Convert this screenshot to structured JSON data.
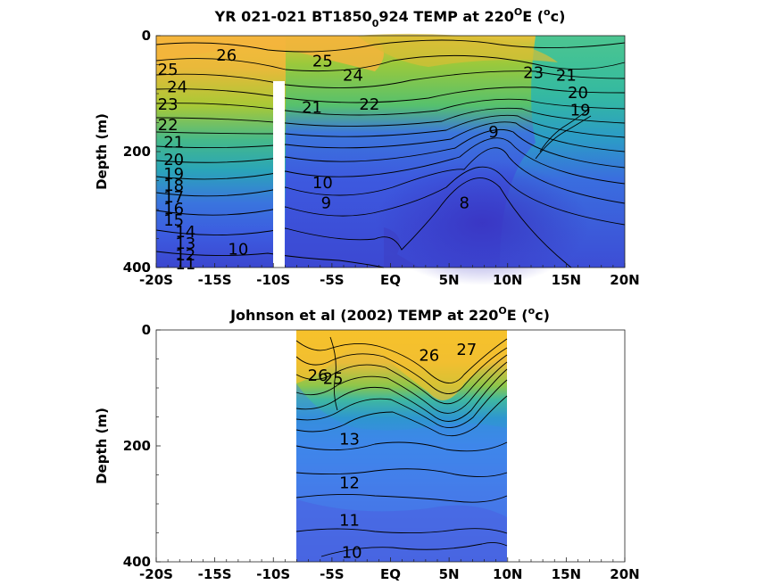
{
  "chart_data": [
    {
      "type": "contour",
      "title_parts": [
        "YR 021-021 BT1850",
        "0",
        "924 TEMP at 220",
        "O",
        "E (",
        "o",
        "c)"
      ],
      "ylabel": "Depth (m)",
      "x_ticks": [
        "-20S",
        "-15S",
        "-10S",
        "-5S",
        "EQ",
        "5N",
        "10N",
        "15N",
        "20N"
      ],
      "y_ticks": [
        "0",
        "200",
        "400"
      ],
      "xlim": [
        -20,
        20
      ],
      "ylim": [
        0,
        400
      ],
      "colors": {
        "warm": "#f4b93a",
        "mid": "#2fb5a0",
        "cool": "#3d55d8",
        "deep": "#3a3fc6"
      },
      "masked_column": {
        "lat": -9.7,
        "from_depth": 80
      },
      "contours": [
        {
          "label": "26",
          "lat": -14,
          "depth": 35
        },
        {
          "label": "25",
          "lat": -5.8,
          "depth": 45
        },
        {
          "label": "25",
          "lat": -19,
          "depth": 60
        },
        {
          "label": "24",
          "lat": -18.2,
          "depth": 90
        },
        {
          "label": "24",
          "lat": -3.2,
          "depth": 70
        },
        {
          "label": "23",
          "lat": -19,
          "depth": 120
        },
        {
          "label": "23",
          "lat": 12.2,
          "depth": 65
        },
        {
          "label": "22",
          "lat": -19,
          "depth": 155
        },
        {
          "label": "22",
          "lat": -1.8,
          "depth": 120
        },
        {
          "label": "21",
          "lat": -18.5,
          "depth": 185
        },
        {
          "label": "21",
          "lat": 15,
          "depth": 70
        },
        {
          "label": "21",
          "lat": -6.7,
          "depth": 125
        },
        {
          "label": "20",
          "lat": -18.5,
          "depth": 215
        },
        {
          "label": "20",
          "lat": 16,
          "depth": 100
        },
        {
          "label": "19",
          "lat": -18.5,
          "depth": 240
        },
        {
          "label": "19",
          "lat": 16.2,
          "depth": 130
        },
        {
          "label": "18",
          "lat": -18.5,
          "depth": 260
        },
        {
          "label": "17",
          "lat": -18.5,
          "depth": 280
        },
        {
          "label": "16",
          "lat": -18.5,
          "depth": 300
        },
        {
          "label": "15",
          "lat": -18.5,
          "depth": 320
        },
        {
          "label": "14",
          "lat": -17.5,
          "depth": 340
        },
        {
          "label": "13",
          "lat": -17.5,
          "depth": 360
        },
        {
          "label": "12",
          "lat": -17.5,
          "depth": 380
        },
        {
          "label": "11",
          "lat": -17.5,
          "depth": 395
        },
        {
          "label": "10",
          "lat": -13,
          "depth": 370
        },
        {
          "label": "10",
          "lat": -5.8,
          "depth": 255
        },
        {
          "label": "9",
          "lat": -5.5,
          "depth": 290
        },
        {
          "label": "9",
          "lat": 8.8,
          "depth": 168
        },
        {
          "label": "8",
          "lat": 6.3,
          "depth": 290
        }
      ]
    },
    {
      "type": "contour",
      "title_parts": [
        "Johnson et al (2002) TEMP at 220",
        "O",
        "E (",
        "o",
        "c)"
      ],
      "ylabel": "Depth (m)",
      "x_ticks": [
        "-20S",
        "-15S",
        "-10S",
        "-5S",
        "EQ",
        "5N",
        "10N",
        "15N",
        "20N"
      ],
      "y_ticks": [
        "0",
        "200",
        "400"
      ],
      "xlim": [
        -20,
        20
      ],
      "ylim": [
        0,
        400
      ],
      "data_xlim": [
        -8,
        10
      ],
      "colors": {
        "warm": "#f4c02e",
        "mid": "#2fb5a0",
        "cool": "#4a82e8",
        "deep": "#4656e0"
      },
      "contours": [
        {
          "label": "27",
          "lat": 6.5,
          "depth": 35
        },
        {
          "label": "26",
          "lat": 3.3,
          "depth": 45
        },
        {
          "label": "26",
          "lat": -6.2,
          "depth": 80
        },
        {
          "label": "25",
          "lat": -4.9,
          "depth": 85
        },
        {
          "label": "13",
          "lat": -3.5,
          "depth": 190
        },
        {
          "label": "12",
          "lat": -3.5,
          "depth": 265
        },
        {
          "label": "11",
          "lat": -3.5,
          "depth": 330
        },
        {
          "label": "10",
          "lat": -3.3,
          "depth": 385
        }
      ]
    }
  ]
}
